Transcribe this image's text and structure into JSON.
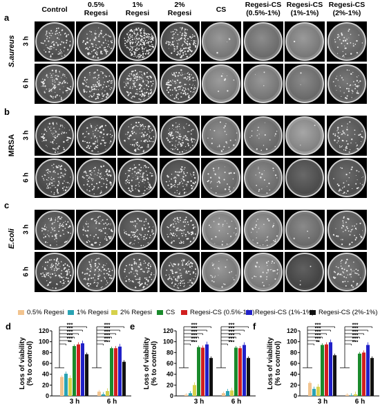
{
  "column_headers": [
    "Control",
    "0.5%\nRegesi",
    "1%\nRegesi",
    "2%\nRegesi",
    "CS",
    "Regesi-CS\n(0.5%-1%)",
    "Regesi-CS\n(1%-1%)",
    "Regesi-CS\n(2%-1%)"
  ],
  "panels": [
    {
      "letter": "a",
      "organism": "S.aureus",
      "italic": true,
      "times": [
        "3 h",
        "6 h"
      ]
    },
    {
      "letter": "b",
      "organism": "MRSA",
      "italic": false,
      "times": [
        "3 h",
        "6 h"
      ]
    },
    {
      "letter": "c",
      "organism": "E.coli",
      "italic": true,
      "times": [
        "3 h",
        "6 h"
      ]
    }
  ],
  "legend": [
    {
      "label": "0.5% Regesi",
      "color": "#f2c48f"
    },
    {
      "label": "1% Regesi",
      "color": "#2aa3b4"
    },
    {
      "label": "2% Regesi",
      "color": "#d6d14b"
    },
    {
      "label": "CS",
      "color": "#1a8a2c"
    },
    {
      "label": "Regesi-CS (0.5%-1%)",
      "color": "#d11f1f"
    },
    {
      "label": "Regesi-CS (1%-1%)",
      "color": "#2020c8"
    },
    {
      "label": "Regesi-CS (2%-1%)",
      "color": "#111111"
    }
  ],
  "chart_data": [
    {
      "type": "bar",
      "panel": "d",
      "categories": [
        "3 h",
        "6 h"
      ],
      "ylabel": "Loss of viability\n(% to control)",
      "ylim": [
        0,
        120
      ],
      "yticks": [
        0,
        20,
        40,
        60,
        80,
        100,
        120
      ],
      "series": [
        {
          "name": "0.5% Regesi",
          "values": [
            35,
            8
          ]
        },
        {
          "name": "1% Regesi",
          "values": [
            41,
            3
          ]
        },
        {
          "name": "2% Regesi",
          "values": [
            33,
            9
          ]
        },
        {
          "name": "CS",
          "values": [
            92,
            88
          ]
        },
        {
          "name": "Regesi-CS (0.5%-1%)",
          "values": [
            95,
            88
          ]
        },
        {
          "name": "Regesi-CS (1%-1%)",
          "values": [
            97,
            91
          ]
        },
        {
          "name": "Regesi-CS (2%-1%)",
          "values": [
            77,
            63
          ]
        }
      ],
      "significance": [
        "***",
        "***",
        "***",
        "***",
        "***",
        "**",
        "***",
        "***",
        "***",
        "***",
        "***",
        "***"
      ]
    },
    {
      "type": "bar",
      "panel": "e",
      "categories": [
        "3 h",
        "6 h"
      ],
      "ylabel": "Loss of viability\n(% to control)",
      "ylim": [
        0,
        120
      ],
      "yticks": [
        0,
        20,
        40,
        60,
        80,
        100,
        120
      ],
      "series": [
        {
          "name": "0.5% Regesi",
          "values": [
            2,
            5
          ]
        },
        {
          "name": "1% Regesi",
          "values": [
            5,
            9
          ]
        },
        {
          "name": "2% Regesi",
          "values": [
            20,
            10
          ]
        },
        {
          "name": "CS",
          "values": [
            90,
            89
          ]
        },
        {
          "name": "Regesi-CS (0.5%-1%)",
          "values": [
            89,
            88
          ]
        },
        {
          "name": "Regesi-CS (1%-1%)",
          "values": [
            95,
            94
          ]
        },
        {
          "name": "Regesi-CS (2%-1%)",
          "values": [
            70,
            70
          ]
        }
      ],
      "significance": [
        "***",
        "***",
        "***",
        "***",
        "***",
        "***",
        "***",
        "***",
        "***",
        "***",
        "***",
        "***"
      ]
    },
    {
      "type": "bar",
      "panel": "f",
      "categories": [
        "3 h",
        "6 h"
      ],
      "ylabel": "Loss of viability\n(% to control)",
      "ylim": [
        0,
        120
      ],
      "yticks": [
        0,
        20,
        40,
        60,
        80,
        100,
        120
      ],
      "series": [
        {
          "name": "0.5% Regesi",
          "values": [
            24,
            2
          ]
        },
        {
          "name": "1% Regesi",
          "values": [
            13,
            1
          ]
        },
        {
          "name": "2% Regesi",
          "values": [
            17,
            3
          ]
        },
        {
          "name": "CS",
          "values": [
            94,
            78
          ]
        },
        {
          "name": "Regesi-CS (0.5%-1%)",
          "values": [
            95,
            80
          ]
        },
        {
          "name": "Regesi-CS (1%-1%)",
          "values": [
            99,
            94
          ]
        },
        {
          "name": "Regesi-CS (2%-1%)",
          "values": [
            75,
            70
          ]
        }
      ],
      "significance": [
        "***",
        "***",
        "***",
        "***",
        "***",
        "**",
        "***",
        "***",
        "***",
        "***",
        "***",
        "***"
      ]
    }
  ]
}
